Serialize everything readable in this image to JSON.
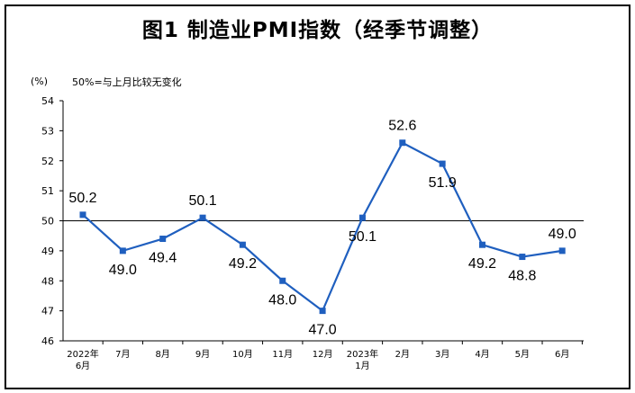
{
  "title": "图1  制造业PMI指数（经季节调整）",
  "unit_label": "(%)",
  "note": "50%=与上月比较无变化",
  "colors": {
    "line": "#1f5fbf",
    "axis": "#000000",
    "reference": "#000000"
  },
  "chart_data": {
    "type": "line",
    "title": "图1  制造业PMI指数（经季节调整）",
    "ylabel": "(%)",
    "xlabel": "",
    "ylim": [
      46,
      54
    ],
    "yticks": [
      46,
      47,
      48,
      49,
      50,
      51,
      52,
      53,
      54
    ],
    "reference_line": 50,
    "grid": false,
    "categories": [
      [
        "2022年",
        "6月"
      ],
      [
        "7月"
      ],
      [
        "8月"
      ],
      [
        "9月"
      ],
      [
        "10月"
      ],
      [
        "11月"
      ],
      [
        "12月"
      ],
      [
        "2023年",
        "1月"
      ],
      [
        "2月"
      ],
      [
        "3月"
      ],
      [
        "4月"
      ],
      [
        "5月"
      ],
      [
        "6月"
      ]
    ],
    "series": [
      {
        "values": [
          50.2,
          49.0,
          49.4,
          50.1,
          49.2,
          48.0,
          47.0,
          50.1,
          52.6,
          51.9,
          49.2,
          48.8,
          49.0
        ],
        "labels": [
          "50.2",
          "49.0",
          "49.4",
          "50.1",
          "49.2",
          "48.0",
          "47.0",
          "50.1",
          "52.6",
          "51.9",
          "49.2",
          "48.8",
          "49.0"
        ]
      }
    ]
  }
}
